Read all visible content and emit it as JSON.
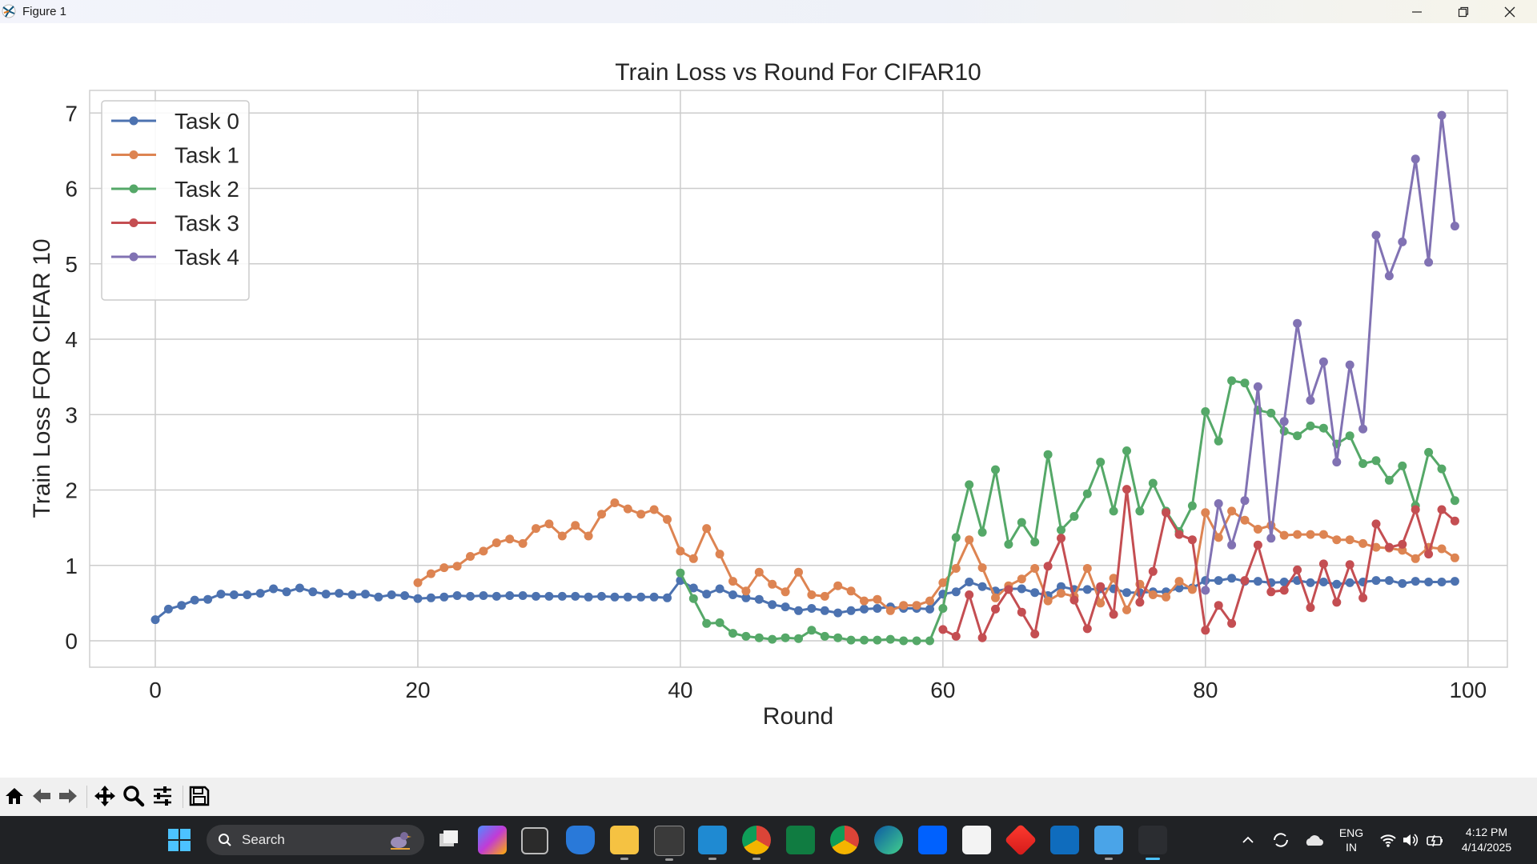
{
  "window": {
    "title": "Figure 1",
    "minimize_icon": "minimize-icon",
    "maximize_icon": "restore-icon",
    "close_icon": "close-icon"
  },
  "chart_data": {
    "type": "line",
    "title": "Train Loss vs Round For CIFAR10",
    "xlabel": "Round",
    "ylabel": "Train Loss FOR CIFAR 10",
    "xlim": [
      -5,
      103
    ],
    "ylim": [
      -0.35,
      7.3
    ],
    "xticks": [
      0,
      20,
      40,
      60,
      80,
      100
    ],
    "yticks": [
      0,
      1,
      2,
      3,
      4,
      5,
      6,
      7
    ],
    "grid": true,
    "legend": "top-left",
    "series": [
      {
        "name": "Task 0",
        "color": "#4c72b0",
        "start": 0,
        "values": [
          0.28,
          0.42,
          0.47,
          0.54,
          0.55,
          0.62,
          0.61,
          0.61,
          0.63,
          0.69,
          0.65,
          0.7,
          0.65,
          0.62,
          0.63,
          0.61,
          0.62,
          0.58,
          0.61,
          0.6,
          0.56,
          0.57,
          0.58,
          0.6,
          0.59,
          0.6,
          0.59,
          0.6,
          0.6,
          0.59,
          0.59,
          0.59,
          0.59,
          0.58,
          0.59,
          0.58,
          0.58,
          0.58,
          0.58,
          0.57,
          0.8,
          0.7,
          0.62,
          0.69,
          0.61,
          0.57,
          0.55,
          0.48,
          0.45,
          0.4,
          0.43,
          0.4,
          0.37,
          0.4,
          0.42,
          0.43,
          0.45,
          0.43,
          0.43,
          0.42,
          0.62,
          0.65,
          0.78,
          0.72,
          0.66,
          0.69,
          0.69,
          0.64,
          0.6,
          0.72,
          0.68,
          0.68,
          0.69,
          0.69,
          0.64,
          0.64,
          0.65,
          0.65,
          0.7,
          0.7,
          0.8,
          0.8,
          0.83,
          0.79,
          0.79,
          0.77,
          0.78,
          0.8,
          0.77,
          0.78,
          0.75,
          0.77,
          0.78,
          0.8,
          0.8,
          0.76,
          0.79,
          0.78,
          0.78,
          0.79
        ]
      },
      {
        "name": "Task 1",
        "color": "#dd8452",
        "start": 20,
        "values": [
          0.77,
          0.89,
          0.97,
          0.99,
          1.12,
          1.19,
          1.3,
          1.35,
          1.29,
          1.49,
          1.55,
          1.39,
          1.53,
          1.39,
          1.68,
          1.83,
          1.75,
          1.68,
          1.74,
          1.61,
          1.19,
          1.09,
          1.49,
          1.15,
          0.79,
          0.66,
          0.91,
          0.75,
          0.65,
          0.91,
          0.61,
          0.59,
          0.73,
          0.66,
          0.53,
          0.55,
          0.4,
          0.47,
          0.47,
          0.53,
          0.77,
          0.96,
          1.34,
          0.97,
          0.57,
          0.73,
          0.82,
          0.96,
          0.53,
          0.63,
          0.59,
          0.96,
          0.5,
          0.83,
          0.41,
          0.75,
          0.61,
          0.58,
          0.79,
          0.68,
          1.7,
          1.37,
          1.72,
          1.6,
          1.48,
          1.53,
          1.4,
          1.41,
          1.41,
          1.41,
          1.34,
          1.34,
          1.29,
          1.24,
          1.23,
          1.2,
          1.09,
          1.24,
          1.22,
          1.1
        ]
      },
      {
        "name": "Task 2",
        "color": "#55a868",
        "start": 40,
        "values": [
          0.9,
          0.56,
          0.23,
          0.24,
          0.1,
          0.06,
          0.04,
          0.02,
          0.04,
          0.03,
          0.14,
          0.06,
          0.04,
          0.01,
          0.01,
          0.01,
          0.02,
          0.0,
          0.0,
          0.0,
          0.43,
          1.37,
          2.07,
          1.44,
          2.27,
          1.28,
          1.57,
          1.31,
          2.47,
          1.47,
          1.65,
          1.95,
          2.37,
          1.72,
          2.52,
          1.72,
          2.09,
          1.72,
          1.45,
          1.79,
          3.04,
          2.65,
          3.45,
          3.42,
          3.06,
          3.02,
          2.78,
          2.72,
          2.85,
          2.82,
          2.61,
          2.72,
          2.35,
          2.39,
          2.13,
          2.32,
          1.79,
          2.5,
          2.28,
          1.86
        ]
      },
      {
        "name": "Task 3",
        "color": "#c44e52",
        "start": 60,
        "values": [
          0.15,
          0.06,
          0.61,
          0.04,
          0.42,
          0.68,
          0.38,
          0.09,
          0.99,
          1.36,
          0.54,
          0.16,
          0.72,
          0.35,
          2.01,
          0.51,
          0.92,
          1.7,
          1.41,
          1.34,
          0.14,
          0.47,
          0.23,
          0.8,
          1.27,
          0.65,
          0.67,
          0.94,
          0.44,
          1.02,
          0.51,
          1.01,
          0.57,
          1.55,
          1.24,
          1.28,
          1.74,
          1.15,
          1.74,
          1.59
        ]
      },
      {
        "name": "Task 4",
        "color": "#8172b3",
        "start": 80,
        "values": [
          0.67,
          1.82,
          1.27,
          1.86,
          3.37,
          1.36,
          2.91,
          4.21,
          3.19,
          3.7,
          2.37,
          3.66,
          2.81,
          5.38,
          4.84,
          5.29,
          6.39,
          5.02,
          6.97,
          5.5
        ]
      }
    ]
  },
  "toolbar": {
    "icons": [
      "home-icon",
      "back-icon",
      "forward-icon",
      "pan-icon",
      "zoom-icon",
      "configure-subplots-icon",
      "save-icon"
    ]
  },
  "taskbar": {
    "search_placeholder": "Search",
    "lang_line1": "ENG",
    "lang_line2": "IN",
    "time": "4:12 PM",
    "date": "4/14/2025"
  }
}
